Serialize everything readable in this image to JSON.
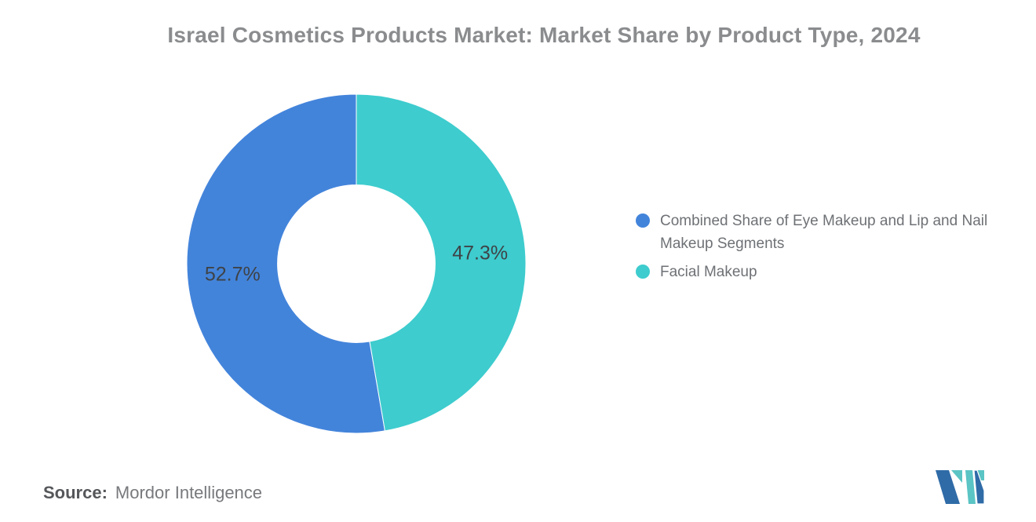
{
  "chart_data": {
    "type": "pie",
    "donut": true,
    "title": "Israel Cosmetics Products Market: Market Share by Product Type, 2024",
    "inner_radius_ratio": 0.465,
    "start_angle_deg": 0,
    "direction": "counterclockwise",
    "legend_position": "right",
    "data_label_color": "#3e4347",
    "slices": [
      {
        "name": "Combined Share of Eye Makeup and Lip and Nail Makeup Segments",
        "value": 52.7,
        "label": "52.7%",
        "color": "#4384db"
      },
      {
        "name": "Facial Makeup",
        "value": 47.3,
        "label": "47.3%",
        "color": "#3eccce"
      }
    ]
  },
  "footer": {
    "source_label": "Source:",
    "source_value": "Mordor Intelligence"
  },
  "logo": {
    "name": "mordor-intelligence-logo",
    "blue": "#2f6ba7",
    "teal": "#5bc4c4"
  }
}
